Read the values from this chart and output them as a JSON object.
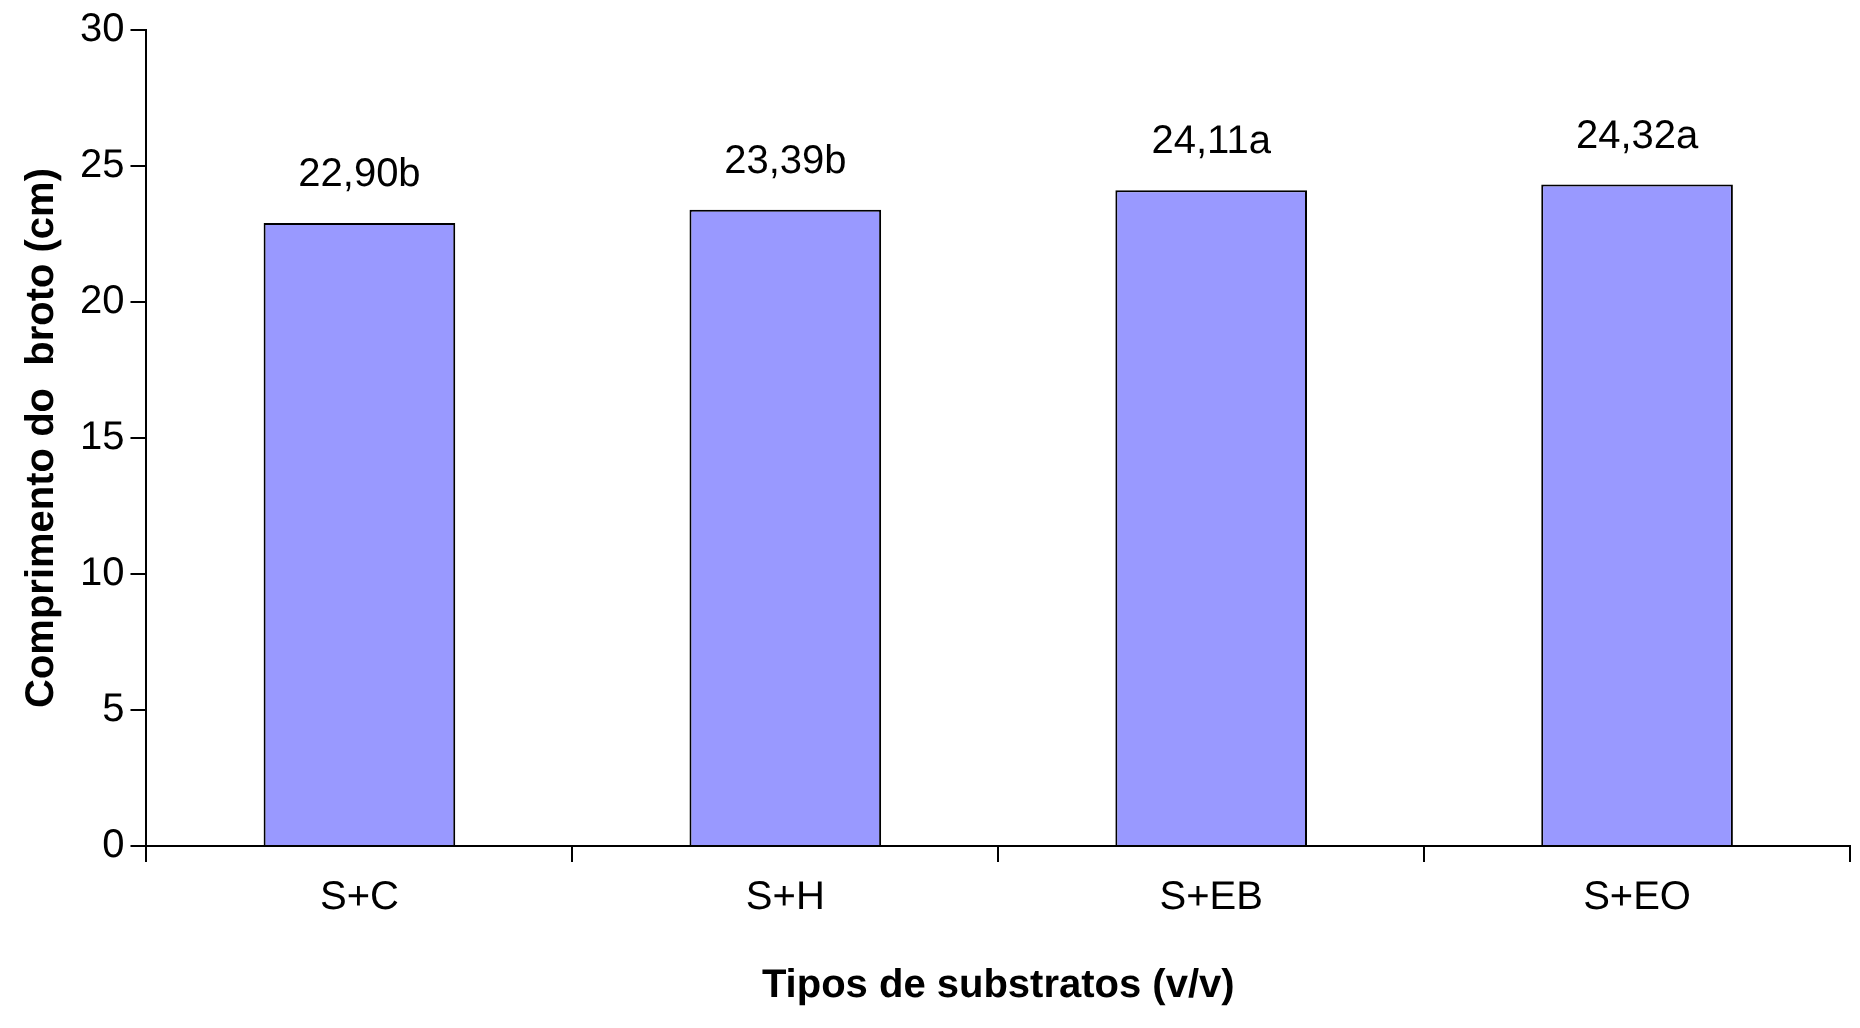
{
  "chart_data": {
    "type": "bar",
    "xlabel": "Tipos de substratos (v/v)",
    "ylabel": "Comprimento do  broto (cm)",
    "categories": [
      "S+C",
      "S+H",
      "S+EB",
      "S+EO"
    ],
    "values": [
      22.9,
      23.39,
      24.11,
      24.32
    ],
    "value_labels": [
      "22,90b",
      "23,39b",
      "24,11a",
      "24,32a"
    ],
    "color": "#9999ff",
    "ylim": [
      0,
      30
    ],
    "yticks": [
      0,
      5,
      10,
      15,
      20,
      25,
      30
    ],
    "grid": false,
    "legend": false
  }
}
